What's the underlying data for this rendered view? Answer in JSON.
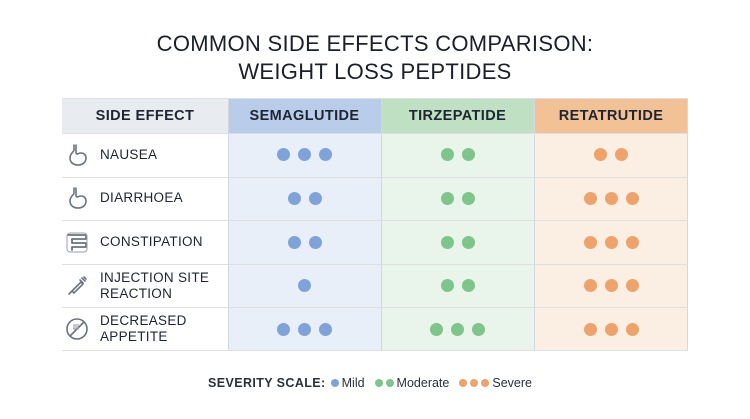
{
  "title": {
    "line1": "COMMON SIDE EFFECTS COMPARISON:",
    "line2": "WEIGHT LOSS PEPTIDES"
  },
  "chart_data": {
    "type": "table",
    "header_label": "SIDE EFFECT",
    "columns": [
      {
        "name": "SEMAGLUTIDE",
        "color": "#7fa3d8",
        "header_bg": "#b9cdea",
        "body_bg": "#e9eff8"
      },
      {
        "name": "TIRZEPATIDE",
        "color": "#7fc48a",
        "header_bg": "#bfe0c3",
        "body_bg": "#e9f4ea"
      },
      {
        "name": "RETATRUTIDE",
        "color": "#eda36b",
        "header_bg": "#f3c196",
        "body_bg": "#fbeee2"
      }
    ],
    "rows": [
      {
        "label_lines": [
          "NAUSEA"
        ],
        "icon": "stomach-icon",
        "severity": [
          3,
          2,
          2
        ]
      },
      {
        "label_lines": [
          "DIARRHOEA"
        ],
        "icon": "stomach-icon",
        "severity": [
          2,
          2,
          3
        ]
      },
      {
        "label_lines": [
          "CONSTIPATION"
        ],
        "icon": "intestine-icon",
        "severity": [
          2,
          2,
          3
        ]
      },
      {
        "label_lines": [
          "INJECTION SITE",
          "REACTION"
        ],
        "icon": "syringe-icon",
        "severity": [
          1,
          2,
          3
        ]
      },
      {
        "label_lines": [
          "DECREASED",
          "APPETITE"
        ],
        "icon": "no-food-icon",
        "severity": [
          3,
          3,
          3
        ]
      }
    ],
    "legend": {
      "title": "SEVERITY SCALE:",
      "items": [
        {
          "label": "Mild",
          "dots": 1,
          "color": "#7fa3d8"
        },
        {
          "label": "Moderate",
          "dots": 2,
          "color": "#7fc48a"
        },
        {
          "label": "Severe",
          "dots": 3,
          "color": "#eda36b"
        }
      ]
    }
  }
}
